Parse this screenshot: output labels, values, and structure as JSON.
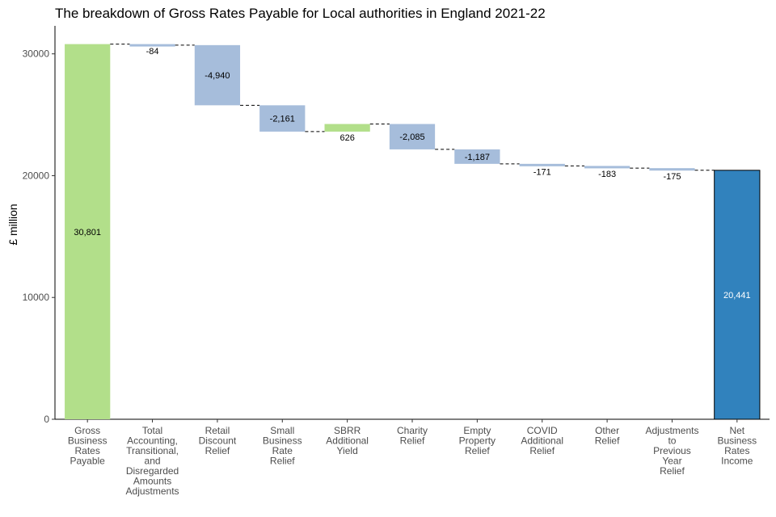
{
  "chart_data": {
    "type": "bar",
    "subtype": "waterfall",
    "title": "The breakdown of Gross Rates Payable for Local authorities in England 2021-22",
    "xlabel": "",
    "ylabel": "£ million",
    "ylim": [
      0,
      32300
    ],
    "yticks": [
      0,
      10000,
      20000,
      30000
    ],
    "grid": false,
    "categories": [
      [
        "Gross",
        "Business",
        "Rates",
        "Payable"
      ],
      [
        "Total",
        "Accounting,",
        "Transitional,",
        "and",
        "Disregarded",
        "Amounts",
        "Adjustments"
      ],
      [
        "Retail",
        "Discount",
        "Relief"
      ],
      [
        "Small",
        "Business",
        "Rate",
        "Relief"
      ],
      [
        "SBRR",
        "Additional",
        "Yield"
      ],
      [
        "Charity",
        "Relief"
      ],
      [
        "Empty",
        "Property",
        "Relief"
      ],
      [
        "COVID",
        "Additional",
        "Relief"
      ],
      [
        "Other",
        "Relief"
      ],
      [
        "Adjustments",
        "to",
        "Previous",
        "Year",
        "Relief"
      ],
      [
        "Net",
        "Business",
        "Rates",
        "Income"
      ]
    ],
    "values": [
      30801,
      -84,
      -4940,
      -2161,
      626,
      -2085,
      -1187,
      -171,
      -183,
      -175,
      20441
    ],
    "labels": [
      "30,801",
      "-84",
      "-4,940",
      "-2,161",
      "626",
      "-2,085",
      "-1,187",
      "-171",
      "-183",
      "-175",
      "20,441"
    ],
    "kinds": [
      "total",
      "change",
      "change",
      "change",
      "change",
      "change",
      "change",
      "change",
      "change",
      "change",
      "final"
    ],
    "colors": {
      "total": "#b2df8a",
      "increase": "#b2df8a",
      "decrease": "#a6bddb",
      "final": "#3182bd",
      "final_border": "#000000",
      "connector": "#000000"
    }
  }
}
